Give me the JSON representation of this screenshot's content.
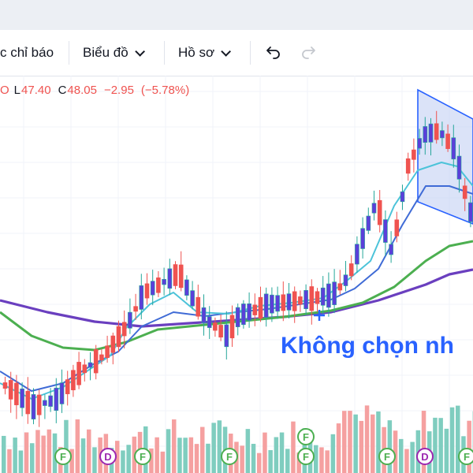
{
  "toolbar": {
    "indicators_label": "c chỉ báo",
    "chart_type_label": "Biểu đồ",
    "profile_label": "Hồ sơ"
  },
  "ohlc": {
    "open_partial_key": "O",
    "low_key": "L",
    "low_value": "47.40",
    "close_key": "C",
    "close_value": "48.05",
    "change": "−2.95",
    "change_pct": "(−5.78%)"
  },
  "overlay_text": "Không chọn nh",
  "colors": {
    "up": "#26a69a",
    "down": "#ef5350",
    "volume_up": "#7fcdbf",
    "volume_down": "#f5a0a0",
    "candle_body_up": "#5b3fd9",
    "pattern_fill": "#c8d4f5",
    "ma_fast": "#4cc3d9",
    "ma_mid": "#3f6bd6",
    "ma_green": "#4caf50",
    "ma_purple": "#6a3fbf",
    "accent": "#2962ff"
  },
  "markers": [
    {
      "letter": "F",
      "color": "#4caf50"
    },
    {
      "letter": "D",
      "color": "#9c27b0"
    },
    {
      "letter": "F",
      "color": "#4caf50"
    },
    {
      "letter": "F",
      "color": "#4caf50"
    },
    {
      "letter": "F",
      "color": "#4caf50"
    },
    {
      "letter": "F",
      "color": "#4caf50"
    },
    {
      "letter": "F",
      "color": "#4caf50"
    },
    {
      "letter": "D",
      "color": "#9c27b0"
    },
    {
      "letter": "F",
      "color": "#4caf50"
    }
  ],
  "icons": {
    "undo": "undo-icon",
    "redo": "redo-icon"
  }
}
